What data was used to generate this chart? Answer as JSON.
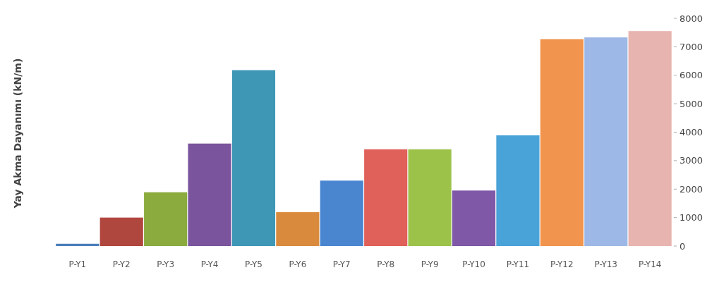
{
  "chart_data": {
    "type": "bar",
    "ylabel": "Yay Akma Dayanımı  (kN/m)",
    "categories": [
      "P-Y1",
      "P-Y2",
      "P-Y3",
      "P-Y4",
      "P-Y5",
      "P-Y6",
      "P-Y7",
      "P-Y8",
      "P-Y9",
      "P-Y10",
      "P-Y11",
      "P-Y12",
      "P-Y13",
      "P-Y14"
    ],
    "values": [
      80,
      1000,
      1890,
      3600,
      6180,
      1190,
      2300,
      3400,
      3400,
      1950,
      3890,
      7270,
      7330,
      7550
    ],
    "colors": [
      "#4a7ebb",
      "#b0473f",
      "#8bab3f",
      "#7a549c",
      "#3f97b6",
      "#d98a3c",
      "#4a86d0",
      "#e0605a",
      "#9cc24a",
      "#7f58a8",
      "#4aa3d8",
      "#f0944e",
      "#9db8e6",
      "#e8b4b0"
    ],
    "ylim": [
      0,
      8000
    ],
    "yticks": [
      0,
      1000,
      2000,
      3000,
      4000,
      5000,
      6000,
      7000,
      8000
    ],
    "grid": false
  }
}
